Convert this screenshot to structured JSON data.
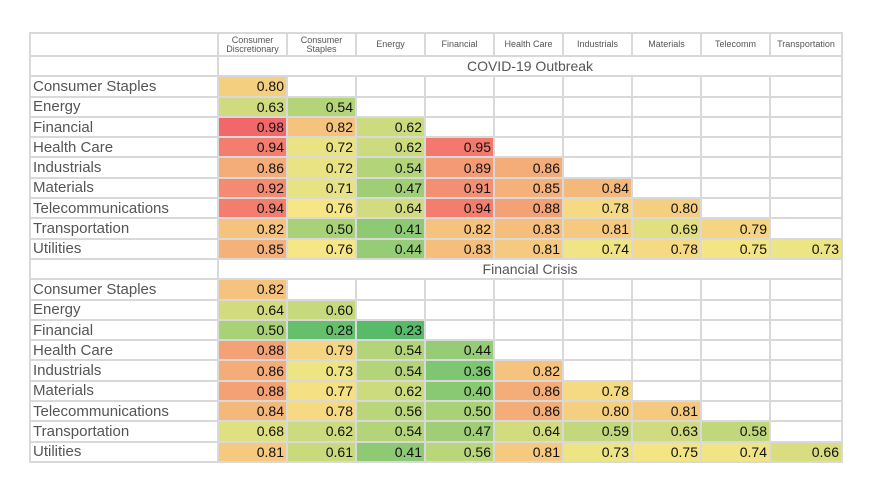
{
  "chart_data": {
    "type": "heatmap",
    "columns": [
      "Consumer Discretionary",
      "Consumer Staples",
      "Energy",
      "Financial",
      "Health Care",
      "Industrials",
      "Materials",
      "Telecomm",
      "Transportation"
    ],
    "panels": [
      {
        "title": "COVID-19 Outbreak",
        "rows": [
          {
            "label": "Consumer Staples",
            "values": [
              "0.80"
            ]
          },
          {
            "label": "Energy",
            "values": [
              "0.63",
              "0.54"
            ]
          },
          {
            "label": "Financial",
            "values": [
              "0.98",
              "0.82",
              "0.62"
            ]
          },
          {
            "label": "Health Care",
            "values": [
              "0.94",
              "0.72",
              "0.62",
              "0.95"
            ]
          },
          {
            "label": "Industrials",
            "values": [
              "0.86",
              "0.72",
              "0.54",
              "0.89",
              "0.86"
            ]
          },
          {
            "label": "Materials",
            "values": [
              "0.92",
              "0.71",
              "0.47",
              "0.91",
              "0.85",
              "0.84"
            ]
          },
          {
            "label": "Telecommunications",
            "values": [
              "0.94",
              "0.76",
              "0.64",
              "0.94",
              "0.88",
              "0.78",
              "0.80"
            ]
          },
          {
            "label": "Transportation",
            "values": [
              "0.82",
              "0.50",
              "0.41",
              "0.82",
              "0.83",
              "0.81",
              "0.69",
              "0.79"
            ]
          },
          {
            "label": "Utilities",
            "values": [
              "0.85",
              "0.76",
              "0.44",
              "0.83",
              "0.81",
              "0.74",
              "0.78",
              "0.75",
              "0.73"
            ]
          }
        ]
      },
      {
        "title": "Financial Crisis",
        "rows": [
          {
            "label": "Consumer Staples",
            "values": [
              "0.82"
            ]
          },
          {
            "label": "Energy",
            "values": [
              "0.64",
              "0.60"
            ]
          },
          {
            "label": "Financial",
            "values": [
              "0.50",
              "0.28",
              "0.23"
            ]
          },
          {
            "label": "Health Care",
            "values": [
              "0.88",
              "0.79",
              "0.54",
              "0.44"
            ]
          },
          {
            "label": "Industrials",
            "values": [
              "0.86",
              "0.73",
              "0.54",
              "0.36",
              "0.82"
            ]
          },
          {
            "label": "Materials",
            "values": [
              "0.88",
              "0.77",
              "0.62",
              "0.40",
              "0.86",
              "0.78"
            ]
          },
          {
            "label": "Telecommunications",
            "values": [
              "0.84",
              "0.78",
              "0.56",
              "0.50",
              "0.86",
              "0.80",
              "0.81"
            ]
          },
          {
            "label": "Transportation",
            "values": [
              "0.68",
              "0.62",
              "0.54",
              "0.47",
              "0.64",
              "0.59",
              "0.63",
              "0.58"
            ]
          },
          {
            "label": "Utilities",
            "values": [
              "0.81",
              "0.61",
              "0.41",
              "0.56",
              "0.81",
              "0.73",
              "0.75",
              "0.74",
              "0.66"
            ]
          }
        ]
      }
    ],
    "color_scale": {
      "low": "#57bb6a",
      "mid": "#f6e685",
      "high": "#f2676a"
    },
    "grid": true
  }
}
